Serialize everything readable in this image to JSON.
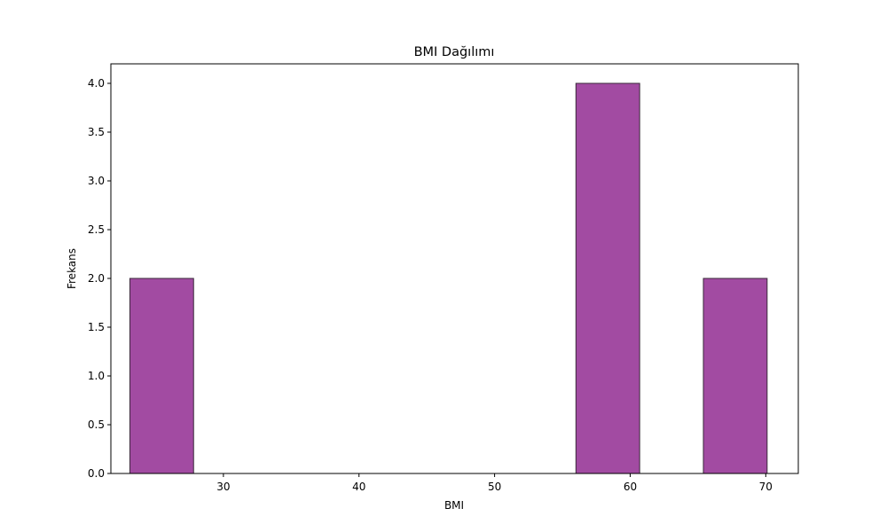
{
  "chart_data": {
    "type": "bar",
    "title": "BMI Dağılımı",
    "xlabel": "BMI",
    "ylabel": "Frekans",
    "xlim": [
      21.7,
      72.4
    ],
    "ylim": [
      0,
      4.2
    ],
    "x_ticks": [
      30,
      40,
      50,
      60,
      70
    ],
    "x_tick_labels": [
      "30",
      "40",
      "50",
      "60",
      "70"
    ],
    "y_ticks": [
      0,
      0.5,
      1.0,
      1.5,
      2.0,
      2.5,
      3.0,
      3.5,
      4.0
    ],
    "y_tick_labels": [
      "0.0",
      "0.5",
      "1.0",
      "1.5",
      "2.0",
      "2.5",
      "3.0",
      "3.5",
      "4.0"
    ],
    "bins": [
      {
        "start": 23.1,
        "end": 27.8,
        "count": 2
      },
      {
        "start": 27.8,
        "end": 32.5,
        "count": 0
      },
      {
        "start": 32.5,
        "end": 37.2,
        "count": 0
      },
      {
        "start": 37.2,
        "end": 41.9,
        "count": 0
      },
      {
        "start": 41.9,
        "end": 46.6,
        "count": 0
      },
      {
        "start": 46.6,
        "end": 51.3,
        "count": 0
      },
      {
        "start": 51.3,
        "end": 56.0,
        "count": 0
      },
      {
        "start": 56.0,
        "end": 60.7,
        "count": 4
      },
      {
        "start": 60.7,
        "end": 65.4,
        "count": 0
      },
      {
        "start": 65.4,
        "end": 70.1,
        "count": 2
      }
    ],
    "bar_color": "#a24ba2",
    "edge_color": "#3a2a3a",
    "grid": false,
    "legend": "none"
  }
}
